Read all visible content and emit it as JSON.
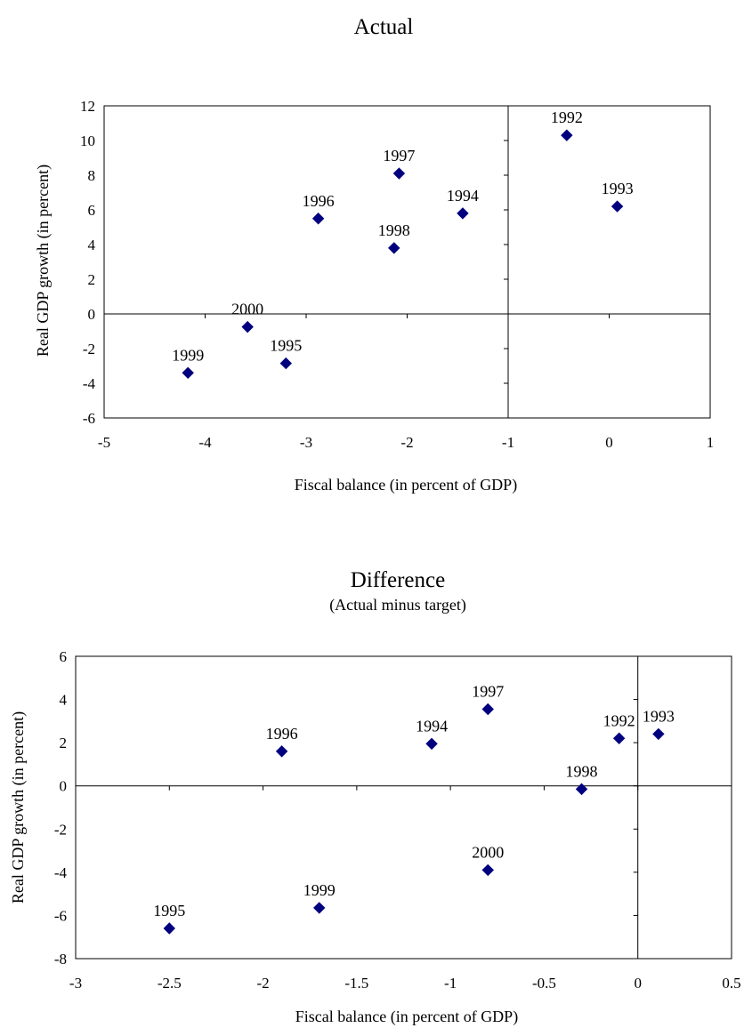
{
  "chart_data": [
    {
      "type": "scatter",
      "title": "Actual",
      "subtitle": "",
      "xlabel": "Fiscal balance (in percent of GDP)",
      "ylabel": "Real GDP growth (in percent)",
      "xlim": [
        -5,
        1
      ],
      "ylim": [
        -6,
        12
      ],
      "xticks": [
        -5,
        -4,
        -3,
        -2,
        -1,
        0,
        1
      ],
      "yticks": [
        -6,
        -4,
        -2,
        0,
        2,
        4,
        6,
        8,
        10,
        12
      ],
      "x_axis_crosses_at": 0,
      "y_axis_crosses_at": -1,
      "marker": "diamond",
      "marker_color": "#00007f",
      "grid": false,
      "legend": "none",
      "points": [
        {
          "label": "1992",
          "x": -0.42,
          "y": 10.3
        },
        {
          "label": "1993",
          "x": 0.08,
          "y": 6.2
        },
        {
          "label": "1994",
          "x": -1.45,
          "y": 5.8
        },
        {
          "label": "1995",
          "x": -3.2,
          "y": -2.85
        },
        {
          "label": "1996",
          "x": -2.88,
          "y": 5.5
        },
        {
          "label": "1997",
          "x": -2.08,
          "y": 8.1
        },
        {
          "label": "1998",
          "x": -2.13,
          "y": 3.8
        },
        {
          "label": "1999",
          "x": -4.17,
          "y": -3.4
        },
        {
          "label": "2000",
          "x": -3.58,
          "y": -0.75
        }
      ]
    },
    {
      "type": "scatter",
      "title": "Difference",
      "subtitle": "(Actual minus target)",
      "xlabel": "Fiscal balance (in percent of GDP)",
      "ylabel": "Real GDP growth (in percent)",
      "xlim": [
        -3,
        0.5
      ],
      "ylim": [
        -8,
        6
      ],
      "xticks": [
        -3,
        -2.5,
        -2,
        -1.5,
        -1,
        -0.5,
        0,
        0.5
      ],
      "yticks": [
        -8,
        -6,
        -4,
        -2,
        0,
        2,
        4,
        6
      ],
      "x_axis_crosses_at": 0,
      "y_axis_crosses_at": 0,
      "marker": "diamond",
      "marker_color": "#00007f",
      "grid": false,
      "legend": "none",
      "points": [
        {
          "label": "1992",
          "x": -0.1,
          "y": 2.2
        },
        {
          "label": "1993",
          "x": 0.11,
          "y": 2.4
        },
        {
          "label": "1994",
          "x": -1.1,
          "y": 1.95
        },
        {
          "label": "1995",
          "x": -2.5,
          "y": -6.6
        },
        {
          "label": "1996",
          "x": -1.9,
          "y": 1.6
        },
        {
          "label": "1997",
          "x": -0.8,
          "y": 3.55
        },
        {
          "label": "1998",
          "x": -0.3,
          "y": -0.15
        },
        {
          "label": "1999",
          "x": -1.7,
          "y": -5.65
        },
        {
          "label": "2000",
          "x": -0.8,
          "y": -3.9
        }
      ]
    }
  ]
}
